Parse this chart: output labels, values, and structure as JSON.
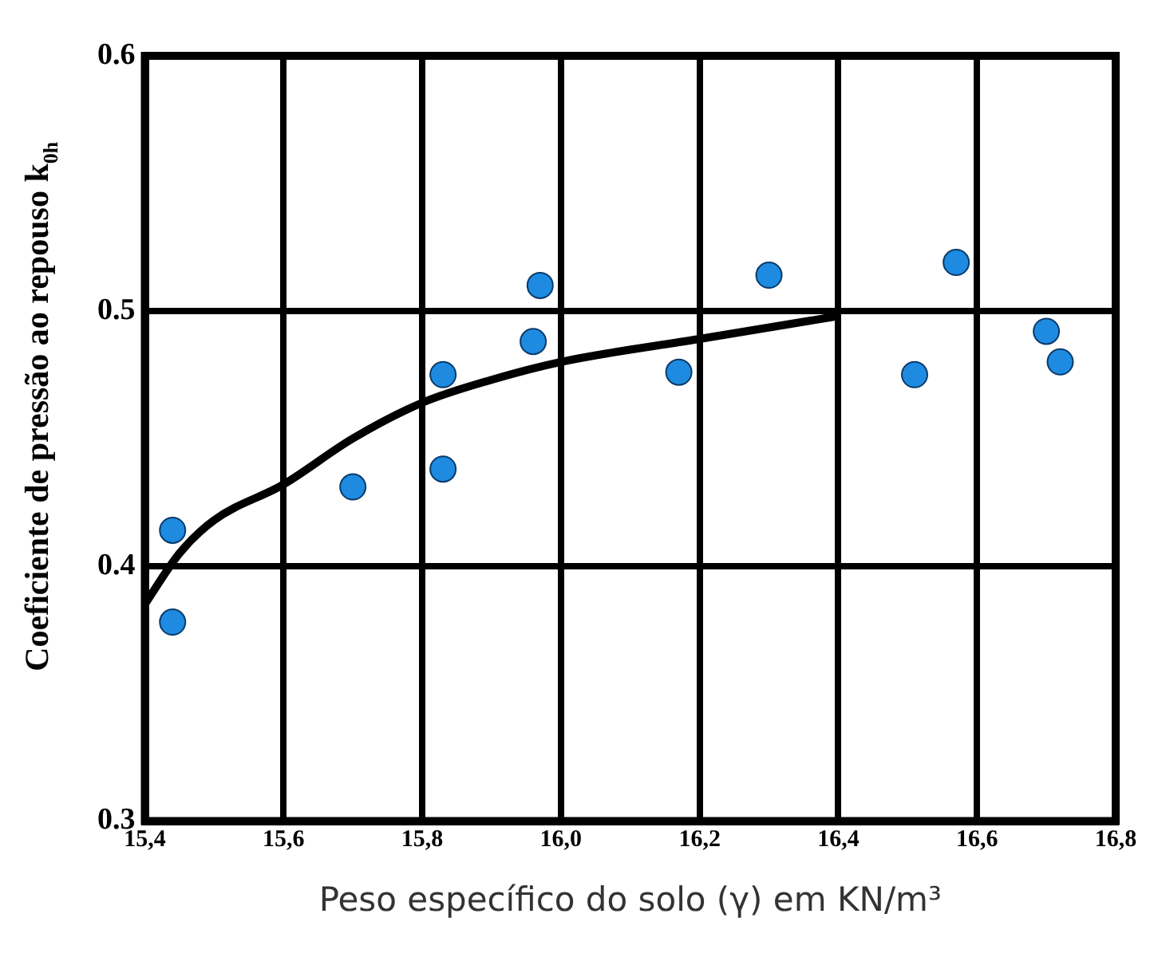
{
  "chart_data": {
    "type": "scatter",
    "xlabel": "Peso específico do solo (γ) em KN/m³",
    "ylabel": "Coeficiente de pressão ao repouso k$_{0h}$",
    "xlim": [
      15.4,
      16.8
    ],
    "xticks": [
      {
        "value": 15.4,
        "label": "15,4"
      },
      {
        "value": 15.6,
        "label": "15,6"
      },
      {
        "value": 15.8,
        "label": "15,8"
      },
      {
        "value": 16.0,
        "label": "16,0"
      },
      {
        "value": 16.2,
        "label": "16,2"
      },
      {
        "value": 16.4,
        "label": "16,4"
      },
      {
        "value": 16.6,
        "label": "16,6"
      },
      {
        "value": 16.8,
        "label": "16,8"
      }
    ],
    "ylim": [
      0.3,
      0.6
    ],
    "yticks": [
      0.3,
      0.4,
      0.5,
      0.6
    ],
    "grid": true,
    "legend": false,
    "marker": "circle",
    "series": [
      {
        "color": "#1e8be0",
        "x": [
          15.44,
          15.44,
          15.7,
          15.83,
          15.83,
          15.96,
          15.97,
          16.17,
          16.3,
          16.51,
          16.57,
          16.7,
          16.72
        ],
        "values": [
          0.414,
          0.378,
          0.431,
          0.438,
          0.475,
          0.488,
          0.51,
          0.476,
          0.514,
          0.475,
          0.519,
          0.492,
          0.48
        ]
      },
      {
        "type": "line",
        "color": "#000000",
        "marker": "none",
        "x": [
          15.4,
          15.45,
          15.5,
          15.6,
          15.7,
          15.8,
          15.9,
          16.0,
          16.2,
          16.4
        ],
        "values": [
          0.385,
          0.405,
          0.418,
          0.432,
          0.45,
          0.464,
          0.473,
          0.48,
          0.489,
          0.498
        ]
      }
    ]
  }
}
